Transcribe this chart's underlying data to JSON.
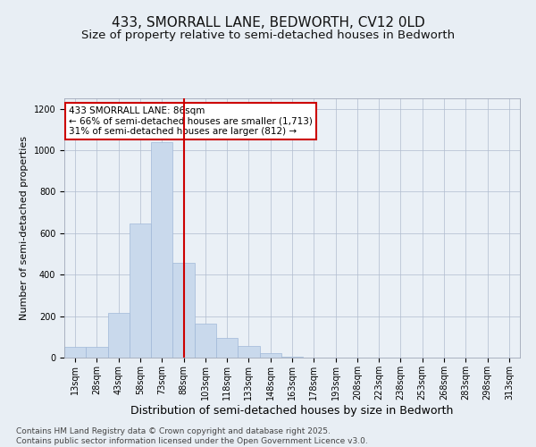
{
  "title": "433, SMORRALL LANE, BEDWORTH, CV12 0LD",
  "subtitle": "Size of property relative to semi-detached houses in Bedworth",
  "xlabel": "Distribution of semi-detached houses by size in Bedworth",
  "ylabel": "Number of semi-detached properties",
  "bins": [
    "13sqm",
    "28sqm",
    "43sqm",
    "58sqm",
    "73sqm",
    "88sqm",
    "103sqm",
    "118sqm",
    "133sqm",
    "148sqm",
    "163sqm",
    "178sqm",
    "193sqm",
    "208sqm",
    "223sqm",
    "238sqm",
    "253sqm",
    "268sqm",
    "283sqm",
    "298sqm",
    "313sqm"
  ],
  "values": [
    50,
    50,
    215,
    645,
    1040,
    455,
    165,
    95,
    55,
    20,
    5,
    2,
    0,
    0,
    0,
    0,
    0,
    0,
    0,
    0,
    0
  ],
  "vline_x": 5.0,
  "bar_color": "#c9d9ec",
  "bar_edge_color": "#a0b8d8",
  "vline_color": "#cc0000",
  "annotation_text": "433 SMORRALL LANE: 86sqm\n← 66% of semi-detached houses are smaller (1,713)\n31% of semi-detached houses are larger (812) →",
  "annotation_box_facecolor": "#ffffff",
  "annotation_box_edgecolor": "#cc0000",
  "bg_color": "#e8eef4",
  "plot_bg_color": "#eaf0f6",
  "footer": "Contains HM Land Registry data © Crown copyright and database right 2025.\nContains public sector information licensed under the Open Government Licence v3.0.",
  "ylim": [
    0,
    1250
  ],
  "yticks": [
    0,
    200,
    400,
    600,
    800,
    1000,
    1200
  ],
  "title_fontsize": 11,
  "subtitle_fontsize": 9.5,
  "xlabel_fontsize": 9,
  "ylabel_fontsize": 8,
  "tick_fontsize": 7,
  "footer_fontsize": 6.5,
  "annot_fontsize": 7.5
}
